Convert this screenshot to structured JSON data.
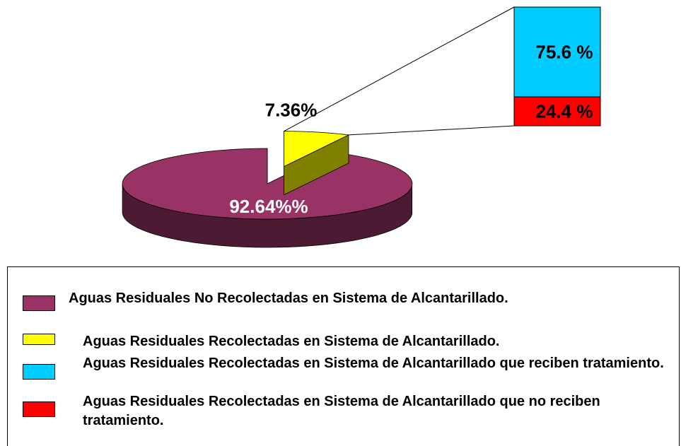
{
  "chart_data": [
    {
      "type": "pie",
      "categories": [
        "Aguas Residuales No Recolectadas en Sistema de Alcantarillado.",
        "Aguas Residuales Recolectadas en Sistema de Alcantarillado."
      ],
      "values": [
        92.64,
        7.36
      ],
      "value_labels": [
        "92.64%%",
        "7.36%"
      ],
      "colors": [
        "#993366",
        "#ffff00"
      ]
    },
    {
      "type": "bar",
      "categories": [
        "Aguas Residuales Recolectadas en Sistema de Alcantarillado que reciben tratamiento.",
        "Aguas Residuales Recolectadas en Sistema de Alcantarillado que no reciben tratamiento."
      ],
      "values": [
        75.6,
        24.4
      ],
      "value_labels": [
        "75.6 %",
        "24.4 %"
      ],
      "colors": [
        "#00ccff",
        "#ff0000"
      ]
    }
  ]
}
